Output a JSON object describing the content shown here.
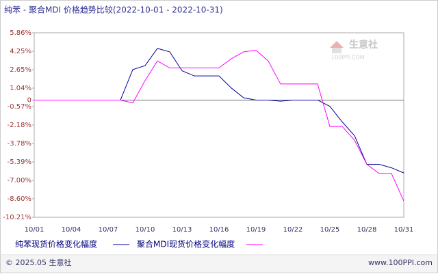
{
  "chart_data": {
    "type": "line",
    "title": "纯苯 - 聚合MDI 价格趋势比较(2022-10-01 - 2022-10-31)",
    "categories": [
      "10/01",
      null,
      null,
      "10/04",
      null,
      null,
      "10/07",
      null,
      null,
      "10/10",
      null,
      null,
      "10/13",
      null,
      null,
      "10/16",
      null,
      null,
      "10/19",
      null,
      null,
      "10/22",
      null,
      null,
      "10/25",
      null,
      null,
      "10/28",
      null,
      null,
      "10/31"
    ],
    "series": [
      {
        "name": "纯苯现货价格变化幅度",
        "color": "#000099",
        "values": [
          0,
          0,
          0,
          0,
          0,
          0,
          0,
          0,
          2.65,
          3.0,
          4.5,
          4.2,
          2.55,
          2.1,
          2.1,
          2.1,
          1.05,
          0.2,
          0,
          0,
          -0.1,
          0,
          0,
          0,
          -0.55,
          -1.9,
          -3.1,
          -5.6,
          -5.6,
          -5.9,
          -6.35
        ]
      },
      {
        "name": "聚合MDI现货价格变化幅度",
        "color": "#ff00ff",
        "values": [
          0,
          0,
          0,
          0,
          0,
          0,
          0,
          0,
          -0.25,
          1.7,
          3.4,
          2.8,
          2.8,
          2.8,
          2.8,
          2.8,
          3.6,
          4.2,
          4.35,
          3.4,
          1.4,
          1.4,
          1.4,
          1.4,
          -2.3,
          -2.3,
          -3.5,
          -5.6,
          -6.4,
          -6.4,
          -8.8
        ]
      }
    ],
    "ylim": [
      -10.21,
      5.86
    ],
    "yticks": [
      {
        "value": 5.86,
        "label": "5.86%"
      },
      {
        "value": 4.25,
        "label": "4.25%"
      },
      {
        "value": 2.65,
        "label": "2.65%"
      },
      {
        "value": 1.04,
        "label": "1.04%"
      },
      0,
      {
        "value": -0.57,
        "label": "-0.57%"
      },
      {
        "value": -2.18,
        "label": "-2.18%"
      },
      {
        "value": -3.78,
        "label": "-3.78%"
      },
      {
        "value": -5.39,
        "label": "-5.39%"
      },
      {
        "value": -7.0,
        "label": "-7.00%"
      },
      {
        "value": -8.6,
        "label": "-8.60%"
      },
      {
        "value": -10.21,
        "label": "-10.21%"
      }
    ],
    "grid": false,
    "logo": {
      "name": "生意社",
      "site": "100PPI.COM"
    },
    "footer": {
      "left": "© 2025.05 生意社",
      "right": "www.100PPI.com"
    }
  }
}
